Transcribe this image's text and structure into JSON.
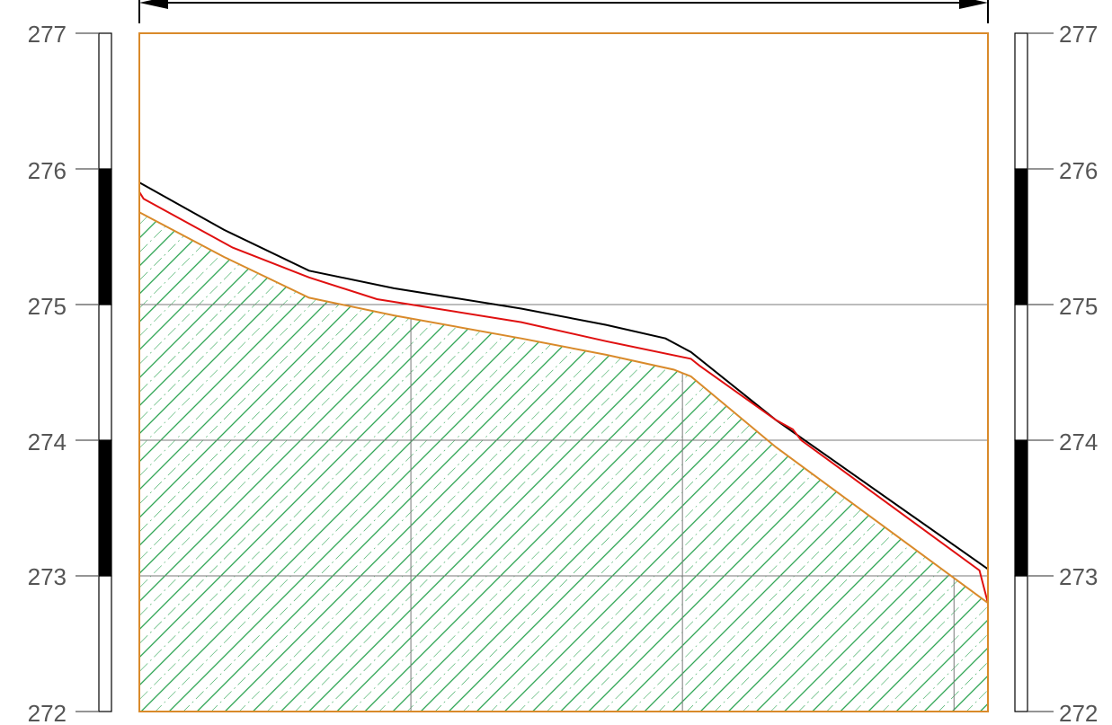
{
  "colors": {
    "frame": "#d98a2a",
    "ground_surface": "#000000",
    "design_line": "#e01010",
    "hatch": "#23a04a",
    "grid": "#7a7a7a",
    "label": "#555555",
    "scale_black": "#000000",
    "scale_white": "#ffffff"
  },
  "scale_labels": {
    "left": [
      "277",
      "276",
      "275",
      "274",
      "273",
      "272"
    ],
    "right": [
      "277",
      "276",
      "275",
      "274",
      "273",
      "272"
    ]
  },
  "chart_data": {
    "type": "cross-section profile",
    "ylim": [
      272,
      277
    ],
    "xlim": [
      0,
      100
    ],
    "grid_y": [
      275,
      274,
      273
    ],
    "grid_x": [
      32,
      64,
      96
    ],
    "series": [
      {
        "key": "ground_surface",
        "points": [
          [
            0,
            275.9
          ],
          [
            10,
            275.55
          ],
          [
            20,
            275.25
          ],
          [
            30,
            275.12
          ],
          [
            45,
            274.97
          ],
          [
            55,
            274.85
          ],
          [
            62,
            274.75
          ],
          [
            65,
            274.65
          ],
          [
            75,
            274.15
          ],
          [
            100,
            273.05
          ]
        ]
      },
      {
        "key": "design_line",
        "points": [
          [
            0,
            275.83
          ],
          [
            0.5,
            275.78
          ],
          [
            11,
            275.42
          ],
          [
            20,
            275.2
          ],
          [
            28,
            275.04
          ],
          [
            35,
            274.97
          ],
          [
            45,
            274.87
          ],
          [
            55,
            274.73
          ],
          [
            65,
            274.6
          ],
          [
            66,
            274.55
          ],
          [
            75,
            274.15
          ],
          [
            77,
            274.08
          ],
          [
            78,
            274.0
          ],
          [
            85,
            273.68
          ],
          [
            99,
            273.04
          ],
          [
            100,
            272.8
          ]
        ]
      },
      {
        "key": "hatched_stratum_top",
        "points": [
          [
            0,
            275.68
          ],
          [
            10,
            275.35
          ],
          [
            20,
            275.05
          ],
          [
            30,
            274.92
          ],
          [
            45,
            274.75
          ],
          [
            55,
            274.63
          ],
          [
            63,
            274.52
          ],
          [
            65,
            274.47
          ],
          [
            75,
            273.95
          ],
          [
            100,
            272.8
          ]
        ]
      }
    ]
  }
}
